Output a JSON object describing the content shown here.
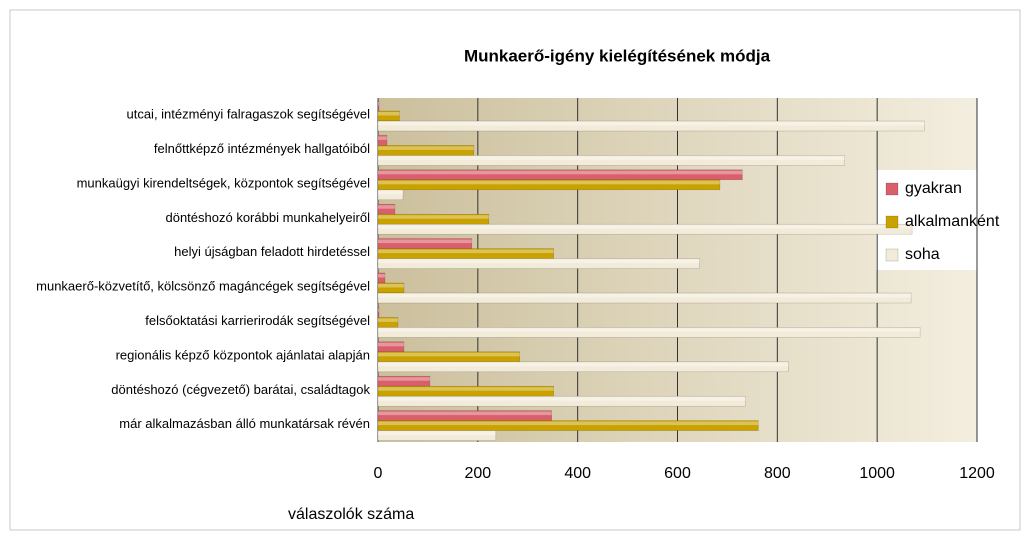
{
  "chart_data": {
    "type": "bar",
    "orientation": "horizontal",
    "title": "Munkaerő-igény kielégítésének módja",
    "x_label": "válaszolók száma",
    "categories": [
      "utcai, intézményi falragaszok segítségével",
      "felnőttképző intézmények hallgatóiból",
      "munkaügyi kirendeltségek, központok segítségével",
      "döntéshozó korábbi munkahelyeiről",
      "helyi újságban feladott hirdetéssel",
      "munkaerő-közvetítő, kölcsönző magáncégek segítségével",
      "felsőoktatási karrierirodák segítségével",
      "regionális képző központok ajánlatai alapján",
      "döntéshozó (cégvezető) barátai, családtagok",
      "már alkalmazásban álló munkatársak révén"
    ],
    "series": [
      {
        "name": "gyakran",
        "color": "#d95f6b",
        "values": [
          2,
          18,
          730,
          34,
          188,
          14,
          2,
          52,
          104,
          348
        ]
      },
      {
        "name": "alkalmanként",
        "color": "#c9a200",
        "values": [
          43,
          192,
          685,
          222,
          352,
          52,
          40,
          284,
          352,
          762
        ]
      },
      {
        "name": "soha",
        "color": "#f3ebd9",
        "values": [
          1095,
          935,
          50,
          1070,
          644,
          1068,
          1086,
          822,
          736,
          236
        ]
      }
    ],
    "xlim": [
      0,
      1200
    ],
    "xticks": [
      0,
      200,
      400,
      600,
      800,
      1000,
      1200
    ],
    "grid": true,
    "legend": "right"
  }
}
